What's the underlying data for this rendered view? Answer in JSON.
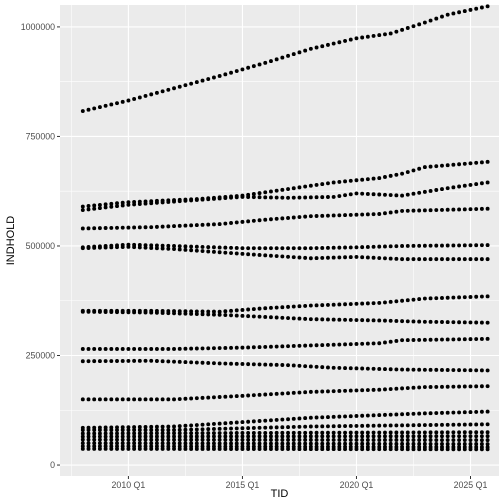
{
  "chart_data": {
    "type": "scatter",
    "title": "",
    "xlabel": "TID",
    "ylabel": "INDHOLD",
    "x_ticks": [
      "2010 Q1",
      "2015 Q1",
      "2020 Q1",
      "2025 Q1"
    ],
    "y_ticks": [
      "0",
      "250000",
      "500000",
      "750000",
      "1000000"
    ],
    "x_range": [
      "2007 Q1",
      "2026 Q2"
    ],
    "ylim": [
      -25000,
      1050000
    ],
    "grid": true,
    "legend": "none",
    "background": "#ebebeb",
    "gridline_color": "#ffffff",
    "point_color": "#000000",
    "x_start": "2008 Q1",
    "x_end": "2025 Q4",
    "series": [
      {
        "points": [
          [
            "2008 Q1",
            808000
          ],
          [
            "2010 Q1",
            832000
          ],
          [
            "2012 Q1",
            860000
          ],
          [
            "2014 Q1",
            888000
          ],
          [
            "2016 Q1",
            918000
          ],
          [
            "2018 Q1",
            950000
          ],
          [
            "2020 Q1",
            974000
          ],
          [
            "2021 Q3",
            985000
          ],
          [
            "2023 Q1",
            1010000
          ],
          [
            "2024 Q1",
            1028000
          ],
          [
            "2025 Q4",
            1047000
          ]
        ]
      },
      {
        "points": [
          [
            "2008 Q1",
            590000
          ],
          [
            "2010 Q1",
            600000
          ],
          [
            "2013 Q1",
            607000
          ],
          [
            "2015 Q1",
            615000
          ],
          [
            "2017 Q1",
            630000
          ],
          [
            "2019 Q1",
            645000
          ],
          [
            "2021 Q1",
            655000
          ],
          [
            "2022 Q1",
            665000
          ],
          [
            "2023 Q1",
            680000
          ],
          [
            "2025 Q4",
            692000
          ]
        ]
      },
      {
        "points": [
          [
            "2008 Q1",
            582000
          ],
          [
            "2010 Q1",
            594000
          ],
          [
            "2013 Q1",
            605000
          ],
          [
            "2015 Q1",
            612000
          ],
          [
            "2017 Q1",
            610000
          ],
          [
            "2019 Q1",
            612000
          ],
          [
            "2020 Q1",
            620000
          ],
          [
            "2022 Q1",
            615000
          ],
          [
            "2024 Q1",
            632000
          ],
          [
            "2025 Q4",
            645000
          ]
        ]
      },
      {
        "points": [
          [
            "2008 Q1",
            540000
          ],
          [
            "2011 Q1",
            543000
          ],
          [
            "2014 Q1",
            550000
          ],
          [
            "2016 Q1",
            560000
          ],
          [
            "2018 Q1",
            568000
          ],
          [
            "2021 Q1",
            573000
          ],
          [
            "2022 Q1",
            580000
          ],
          [
            "2025 Q4",
            585000
          ]
        ]
      },
      {
        "points": [
          [
            "2008 Q1",
            497000
          ],
          [
            "2010 Q1",
            503000
          ],
          [
            "2012 Q1",
            500000
          ],
          [
            "2015 Q1",
            495000
          ],
          [
            "2018 Q1",
            495000
          ],
          [
            "2020 Q1",
            497000
          ],
          [
            "2022 Q1",
            500000
          ],
          [
            "2025 Q4",
            502000
          ]
        ]
      },
      {
        "points": [
          [
            "2008 Q1",
            495000
          ],
          [
            "2010 Q1",
            498000
          ],
          [
            "2012 Q1",
            493000
          ],
          [
            "2015 Q1",
            482000
          ],
          [
            "2018 Q1",
            472000
          ],
          [
            "2020 Q1",
            475000
          ],
          [
            "2022 Q1",
            470000
          ],
          [
            "2025 Q4",
            470000
          ]
        ]
      },
      {
        "points": [
          [
            "2008 Q1",
            352000
          ],
          [
            "2011 Q1",
            352000
          ],
          [
            "2014 Q1",
            350000
          ],
          [
            "2016 Q1",
            358000
          ],
          [
            "2018 Q1",
            364000
          ],
          [
            "2021 Q1",
            370000
          ],
          [
            "2023 Q1",
            380000
          ],
          [
            "2025 Q4",
            385000
          ]
        ]
      },
      {
        "points": [
          [
            "2008 Q1",
            350000
          ],
          [
            "2011 Q1",
            348000
          ],
          [
            "2014 Q1",
            343000
          ],
          [
            "2016 Q1",
            338000
          ],
          [
            "2018 Q1",
            333000
          ],
          [
            "2021 Q1",
            330000
          ],
          [
            "2023 Q1",
            327000
          ],
          [
            "2025 Q4",
            325000
          ]
        ]
      },
      {
        "points": [
          [
            "2008 Q1",
            265000
          ],
          [
            "2012 Q1",
            265000
          ],
          [
            "2015 Q1",
            268000
          ],
          [
            "2018 Q1",
            273000
          ],
          [
            "2021 Q1",
            278000
          ],
          [
            "2022 Q1",
            285000
          ],
          [
            "2025 Q4",
            288000
          ]
        ]
      },
      {
        "points": [
          [
            "2008 Q1",
            237000
          ],
          [
            "2011 Q1",
            238000
          ],
          [
            "2014 Q1",
            232000
          ],
          [
            "2017 Q1",
            228000
          ],
          [
            "2019 Q1",
            222000
          ],
          [
            "2022 Q1",
            218000
          ],
          [
            "2025 Q4",
            216000
          ]
        ]
      },
      {
        "points": [
          [
            "2008 Q1",
            150000
          ],
          [
            "2012 Q1",
            150000
          ],
          [
            "2015 Q1",
            158000
          ],
          [
            "2018 Q1",
            167000
          ],
          [
            "2021 Q1",
            172000
          ],
          [
            "2023 Q1",
            178000
          ],
          [
            "2025 Q4",
            180000
          ]
        ]
      },
      {
        "points": [
          [
            "2008 Q1",
            85000
          ],
          [
            "2012 Q1",
            88000
          ],
          [
            "2015 Q1",
            98000
          ],
          [
            "2018 Q1",
            108000
          ],
          [
            "2020 Q1",
            112000
          ],
          [
            "2023 Q1",
            118000
          ],
          [
            "2025 Q4",
            122000
          ]
        ]
      },
      {
        "points": [
          [
            "2008 Q1",
            80000
          ],
          [
            "2012 Q1",
            80000
          ],
          [
            "2015 Q1",
            84000
          ],
          [
            "2018 Q1",
            88000
          ],
          [
            "2021 Q1",
            90000
          ],
          [
            "2025 Q4",
            93000
          ]
        ]
      },
      {
        "points": [
          [
            "2008 Q1",
            72000
          ],
          [
            "2025 Q4",
            75000
          ]
        ]
      },
      {
        "points": [
          [
            "2008 Q1",
            65000
          ],
          [
            "2025 Q4",
            66000
          ]
        ]
      },
      {
        "points": [
          [
            "2008 Q1",
            58000
          ],
          [
            "2025 Q4",
            57000
          ]
        ]
      },
      {
        "points": [
          [
            "2008 Q1",
            50000
          ],
          [
            "2025 Q4",
            48000
          ]
        ]
      },
      {
        "points": [
          [
            "2008 Q1",
            43000
          ],
          [
            "2025 Q4",
            41000
          ]
        ]
      },
      {
        "points": [
          [
            "2008 Q1",
            37000
          ],
          [
            "2025 Q4",
            36000
          ]
        ]
      }
    ]
  }
}
